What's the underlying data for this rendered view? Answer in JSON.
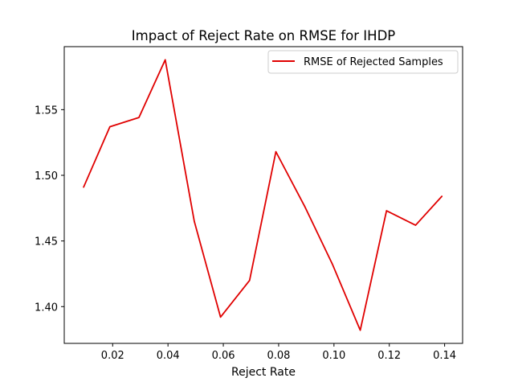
{
  "chart_data": {
    "type": "line",
    "title": "Impact of Reject Rate on RMSE for IHDP",
    "xlabel": "Reject Rate",
    "ylabel": "",
    "xlim": [
      0.0025,
      0.1465
    ],
    "ylim": [
      1.372,
      1.598
    ],
    "xticks": [
      0.02,
      0.04,
      0.06,
      0.08,
      0.1,
      0.12,
      0.14
    ],
    "xtick_labels": [
      "0.02",
      "0.04",
      "0.06",
      "0.08",
      "0.10",
      "0.12",
      "0.14"
    ],
    "yticks": [
      1.4,
      1.45,
      1.5,
      1.55
    ],
    "ytick_labels": [
      "1.40",
      "1.45",
      "1.50",
      "1.55"
    ],
    "grid": false,
    "legend_position": "top-right",
    "series": [
      {
        "name": "RMSE of Rejected Samples",
        "color": "#e00000",
        "x": [
          0.0095,
          0.019,
          0.0295,
          0.039,
          0.0495,
          0.059,
          0.0695,
          0.079,
          0.0895,
          0.0995,
          0.1095,
          0.119,
          0.1295,
          0.139
        ],
        "y": [
          1.491,
          1.537,
          1.544,
          1.588,
          1.465,
          1.392,
          1.42,
          1.518,
          1.476,
          1.432,
          1.382,
          1.473,
          1.462,
          1.484
        ]
      }
    ]
  }
}
